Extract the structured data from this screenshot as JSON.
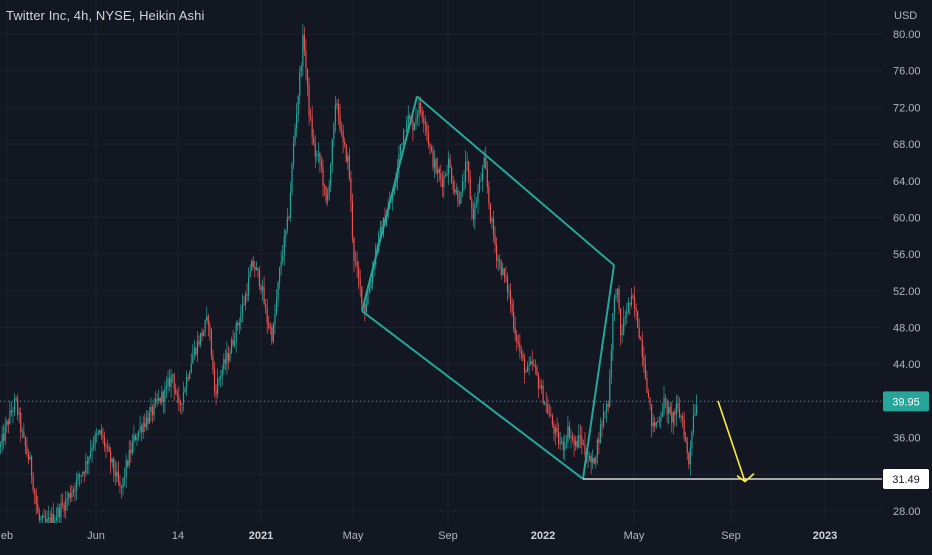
{
  "header": {
    "title": "Twitter Inc, 4h, NYSE, Heikin Ashi"
  },
  "chart_data": {
    "type": "candlestick",
    "symbol": "TWTR",
    "interval": "4h",
    "exchange": "NYSE",
    "chart_style": "Heikin Ashi",
    "currency_label": "USD",
    "y_ticks": [
      28,
      32,
      36,
      40,
      44,
      48,
      52,
      56,
      60,
      64,
      68,
      72,
      76,
      80
    ],
    "y_tick_labels": [
      "28.00",
      "32.00",
      "36.00",
      "40.00",
      "44.00",
      "48.00",
      "52.00",
      "56.00",
      "60.00",
      "64.00",
      "68.00",
      "72.00",
      "76.00",
      "80.00"
    ],
    "ylim": [
      26.5,
      83
    ],
    "x_ticks": [
      {
        "label": "eb",
        "bold": false
      },
      {
        "label": "Jun",
        "bold": false
      },
      {
        "label": "14",
        "bold": false
      },
      {
        "label": "2021",
        "bold": true
      },
      {
        "label": "May",
        "bold": false
      },
      {
        "label": "Sep",
        "bold": false
      },
      {
        "label": "2022",
        "bold": true
      },
      {
        "label": "May",
        "bold": false
      },
      {
        "label": "Sep",
        "bold": false
      },
      {
        "label": "2023",
        "bold": true
      }
    ],
    "price_path": [
      [
        0,
        35
      ],
      [
        8,
        38
      ],
      [
        15,
        40
      ],
      [
        22,
        36
      ],
      [
        30,
        33
      ],
      [
        38,
        27
      ],
      [
        45,
        26.5
      ],
      [
        55,
        27.5
      ],
      [
        65,
        29
      ],
      [
        75,
        31
      ],
      [
        85,
        33
      ],
      [
        92,
        35.5
      ],
      [
        100,
        36.5
      ],
      [
        108,
        34
      ],
      [
        115,
        32
      ],
      [
        120,
        30
      ],
      [
        126,
        33
      ],
      [
        134,
        36
      ],
      [
        142,
        37.5
      ],
      [
        150,
        38.5
      ],
      [
        158,
        40
      ],
      [
        165,
        41
      ],
      [
        172,
        43
      ],
      [
        178,
        39
      ],
      [
        185,
        42
      ],
      [
        192,
        45
      ],
      [
        200,
        47
      ],
      [
        208,
        49
      ],
      [
        214,
        41
      ],
      [
        220,
        43
      ],
      [
        228,
        45
      ],
      [
        236,
        48
      ],
      [
        244,
        51
      ],
      [
        252,
        55
      ],
      [
        260,
        53
      ],
      [
        266,
        49
      ],
      [
        272,
        47
      ],
      [
        280,
        55
      ],
      [
        288,
        60
      ],
      [
        293,
        68
      ],
      [
        298,
        74
      ],
      [
        303,
        80
      ],
      [
        308,
        72
      ],
      [
        314,
        67
      ],
      [
        320,
        66
      ],
      [
        326,
        61
      ],
      [
        331,
        67
      ],
      [
        336,
        73
      ],
      [
        342,
        68
      ],
      [
        348,
        66
      ],
      [
        353,
        56
      ],
      [
        358,
        53
      ],
      [
        364,
        50
      ],
      [
        370,
        53
      ],
      [
        376,
        57
      ],
      [
        382,
        59
      ],
      [
        388,
        61
      ],
      [
        394,
        63
      ],
      [
        400,
        68
      ],
      [
        406,
        71
      ],
      [
        412,
        70
      ],
      [
        418,
        72
      ],
      [
        424,
        71
      ],
      [
        430,
        67
      ],
      [
        436,
        65
      ],
      [
        442,
        64
      ],
      [
        448,
        66
      ],
      [
        454,
        63
      ],
      [
        460,
        62
      ],
      [
        466,
        66
      ],
      [
        472,
        60
      ],
      [
        478,
        63
      ],
      [
        484,
        66
      ],
      [
        490,
        60
      ],
      [
        496,
        56
      ],
      [
        502,
        54
      ],
      [
        508,
        52
      ],
      [
        514,
        48
      ],
      [
        520,
        45
      ],
      [
        526,
        43
      ],
      [
        532,
        44
      ],
      [
        538,
        42
      ],
      [
        544,
        40
      ],
      [
        550,
        38
      ],
      [
        556,
        36
      ],
      [
        562,
        35
      ],
      [
        568,
        37
      ],
      [
        574,
        35
      ],
      [
        580,
        36
      ],
      [
        586,
        34
      ],
      [
        592,
        33
      ],
      [
        598,
        36
      ],
      [
        604,
        39
      ],
      [
        608,
        40
      ],
      [
        612,
        49
      ],
      [
        616,
        53
      ],
      [
        620,
        47
      ],
      [
        626,
        50
      ],
      [
        632,
        51
      ],
      [
        638,
        48
      ],
      [
        644,
        44
      ],
      [
        648,
        40
      ],
      [
        652,
        37
      ],
      [
        658,
        38
      ],
      [
        664,
        40
      ],
      [
        670,
        38
      ],
      [
        676,
        39
      ],
      [
        682,
        38
      ],
      [
        688,
        33
      ],
      [
        692,
        38
      ],
      [
        696,
        40
      ]
    ],
    "trendlines": [
      {
        "name": "channel-upper",
        "x1": 417,
        "y1": 73.2,
        "x2": 614,
        "y2": 54.8
      },
      {
        "name": "channel-lower",
        "x1": 362,
        "y1": 49.8,
        "x2": 583,
        "y2": 31.5
      },
      {
        "name": "channel-left",
        "x1": 362,
        "y1": 49.8,
        "x2": 417,
        "y2": 73.2
      },
      {
        "name": "channel-right",
        "x1": 583,
        "y1": 31.5,
        "x2": 614,
        "y2": 54.8
      }
    ],
    "current_price": 39.95,
    "current_price_label": "39.95",
    "support_level": 31.49,
    "support_label": "31.49",
    "annotation_arrow": {
      "color": "#ffeb3b",
      "from": [
        718,
        40
      ],
      "to": [
        745,
        31.2
      ]
    },
    "colors": {
      "background": "#131722",
      "up": "#26a69a",
      "down": "#ef5350",
      "channel": "#26a69a",
      "current_price_line": "#26a69a",
      "support_line": "#ffffff",
      "arrow": "#ffeb3b",
      "axis_text": "#b2b5be"
    },
    "grid": true,
    "legend": "none"
  }
}
